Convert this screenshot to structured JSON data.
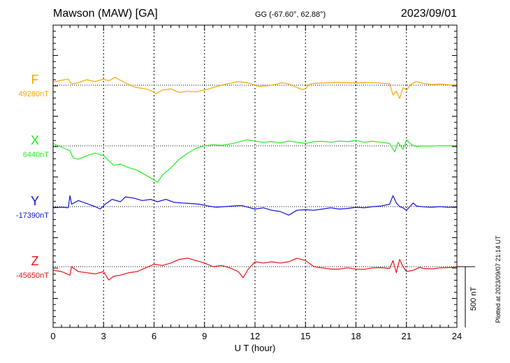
{
  "header": {
    "station": "Mawson (MAW)  [GA]",
    "coords": "GG (-67.60°,  62.88°)",
    "date": "2023/09/01"
  },
  "footer": {
    "plotted": "Plotted at 2023/09/07 21:14 UT"
  },
  "chart_data": {
    "type": "line",
    "xlabel": "U T (hour)",
    "xlim": [
      0,
      24
    ],
    "xticks": [
      "0",
      "3",
      "6",
      "9",
      "12",
      "15",
      "18",
      "21",
      "24"
    ],
    "scale_bar": "500 nT",
    "series": [
      {
        "name": "F",
        "baseline_label": "49280nT",
        "baseline": 49280,
        "color": "#f5a800",
        "x": [
          0,
          0.5,
          0.9,
          1.1,
          1.5,
          2,
          2.5,
          3,
          3.3,
          3.7,
          4,
          4.3,
          4.7,
          5,
          5.5,
          5.9,
          6.1,
          6.5,
          7,
          7.5,
          8,
          8.5,
          9,
          9.5,
          10,
          10.5,
          11,
          11.5,
          11.8,
          12.2,
          12.7,
          13.2,
          13.6,
          14,
          14.5,
          14.8,
          15,
          15.2,
          15.5,
          16,
          16.5,
          17,
          17.5,
          18,
          18.5,
          19,
          19.5,
          20,
          20.2,
          20.4,
          20.6,
          20.8,
          21,
          21.3,
          21.6,
          22,
          22.5,
          23,
          23.5,
          24
        ],
        "y": [
          49305,
          49320,
          49330,
          49290,
          49300,
          49325,
          49310,
          49330,
          49315,
          49345,
          49320,
          49300,
          49270,
          49260,
          49250,
          49230,
          49210,
          49240,
          49250,
          49220,
          49230,
          49225,
          49240,
          49260,
          49280,
          49295,
          49310,
          49300,
          49290,
          49270,
          49275,
          49285,
          49300,
          49290,
          49260,
          49245,
          49250,
          49285,
          49295,
          49298,
          49300,
          49303,
          49300,
          49298,
          49300,
          49302,
          49296,
          49292,
          49200,
          49230,
          49170,
          49260,
          49240,
          49290,
          49310,
          49295,
          49285,
          49290,
          49283,
          49282
        ]
      },
      {
        "name": "X",
        "baseline_label": "6440nT",
        "baseline": 6440,
        "color": "#22ee22",
        "x": [
          0,
          0.5,
          1,
          1.2,
          1.5,
          2,
          2.5,
          3,
          3.3,
          3.6,
          4,
          4.5,
          5,
          5.5,
          6,
          6.2,
          6.5,
          7,
          7.5,
          8,
          8.5,
          9,
          9.5,
          10,
          10.5,
          11,
          11.5,
          12,
          12.5,
          13,
          13.5,
          14,
          14.5,
          15,
          15.5,
          16,
          16.5,
          17,
          17.5,
          18,
          18.5,
          19,
          19.5,
          20,
          20.3,
          20.5,
          20.8,
          21,
          21.3,
          21.6,
          22,
          22.5,
          23,
          23.5,
          24
        ],
        "y": [
          6460,
          6430,
          6400,
          6340,
          6330,
          6360,
          6380,
          6360,
          6320,
          6280,
          6290,
          6260,
          6240,
          6200,
          6160,
          6140,
          6200,
          6260,
          6330,
          6380,
          6420,
          6440,
          6450,
          6445,
          6455,
          6470,
          6490,
          6480,
          6470,
          6475,
          6465,
          6480,
          6470,
          6460,
          6475,
          6478,
          6470,
          6480,
          6475,
          6485,
          6470,
          6478,
          6470,
          6460,
          6390,
          6470,
          6410,
          6490,
          6450,
          6435,
          6440,
          6438,
          6442,
          6440,
          6444
        ]
      },
      {
        "name": "Y",
        "baseline_label": "-17390nT",
        "baseline": -17390,
        "color": "#1010dd",
        "x": [
          0,
          0.5,
          0.9,
          1.0,
          1.1,
          1.5,
          2,
          2.5,
          2.8,
          3.1,
          3.5,
          4,
          4.3,
          4.8,
          5.3,
          5.8,
          6.2,
          6.7,
          7.2,
          7.7,
          8.2,
          8.7,
          9.2,
          9.7,
          10.2,
          10.7,
          11.2,
          11.6,
          12,
          12.5,
          13,
          13.5,
          14,
          14.5,
          15,
          15.5,
          16,
          16.5,
          17,
          17.5,
          18,
          18.5,
          19,
          19.5,
          20,
          20.2,
          20.4,
          20.6,
          20.8,
          21,
          21.2,
          21.4,
          21.6,
          22,
          22.5,
          23,
          23.5,
          24
        ],
        "y": [
          -17400,
          -17395,
          -17400,
          -17300,
          -17370,
          -17340,
          -17365,
          -17390,
          -17410,
          -17370,
          -17330,
          -17350,
          -17310,
          -17320,
          -17340,
          -17330,
          -17350,
          -17330,
          -17355,
          -17360,
          -17365,
          -17370,
          -17385,
          -17395,
          -17390,
          -17385,
          -17380,
          -17395,
          -17410,
          -17400,
          -17420,
          -17430,
          -17460,
          -17420,
          -17415,
          -17420,
          -17410,
          -17400,
          -17410,
          -17405,
          -17395,
          -17400,
          -17390,
          -17385,
          -17370,
          -17300,
          -17360,
          -17390,
          -17400,
          -17420,
          -17390,
          -17360,
          -17385,
          -17392,
          -17395,
          -17390,
          -17396,
          -17392
        ]
      },
      {
        "name": "Z",
        "baseline_label": "-45650nT",
        "baseline": -45650,
        "color": "#ee1111",
        "x": [
          0,
          0.5,
          1,
          1.1,
          1.5,
          2,
          2.5,
          3,
          3.3,
          3.6,
          4,
          4.5,
          5,
          5.5,
          6,
          6.5,
          7,
          7.5,
          8,
          8.5,
          9,
          9.5,
          10,
          10.5,
          11,
          11.3,
          11.6,
          12,
          12.5,
          13,
          13.5,
          14,
          14.5,
          15,
          15.5,
          16,
          16.5,
          17,
          17.5,
          18,
          18.5,
          19,
          19.5,
          20,
          20.2,
          20.4,
          20.6,
          20.8,
          21,
          21.4,
          21.8,
          22,
          22.5,
          23,
          23.5,
          24
        ],
        "y": [
          -45680,
          -45690,
          -45720,
          -45650,
          -45690,
          -45700,
          -45710,
          -45690,
          -45760,
          -45730,
          -45720,
          -45700,
          -45690,
          -45660,
          -45630,
          -45640,
          -45620,
          -45590,
          -45580,
          -45600,
          -45620,
          -45650,
          -45640,
          -45660,
          -45690,
          -45740,
          -45670,
          -45610,
          -45620,
          -45610,
          -45620,
          -45610,
          -45580,
          -45600,
          -45650,
          -45660,
          -45670,
          -45670,
          -45660,
          -45670,
          -45672,
          -45660,
          -45658,
          -45665,
          -45600,
          -45700,
          -45590,
          -45650,
          -45690,
          -45680,
          -45655,
          -45665,
          -45668,
          -45660,
          -45658,
          -45652
        ]
      }
    ]
  }
}
